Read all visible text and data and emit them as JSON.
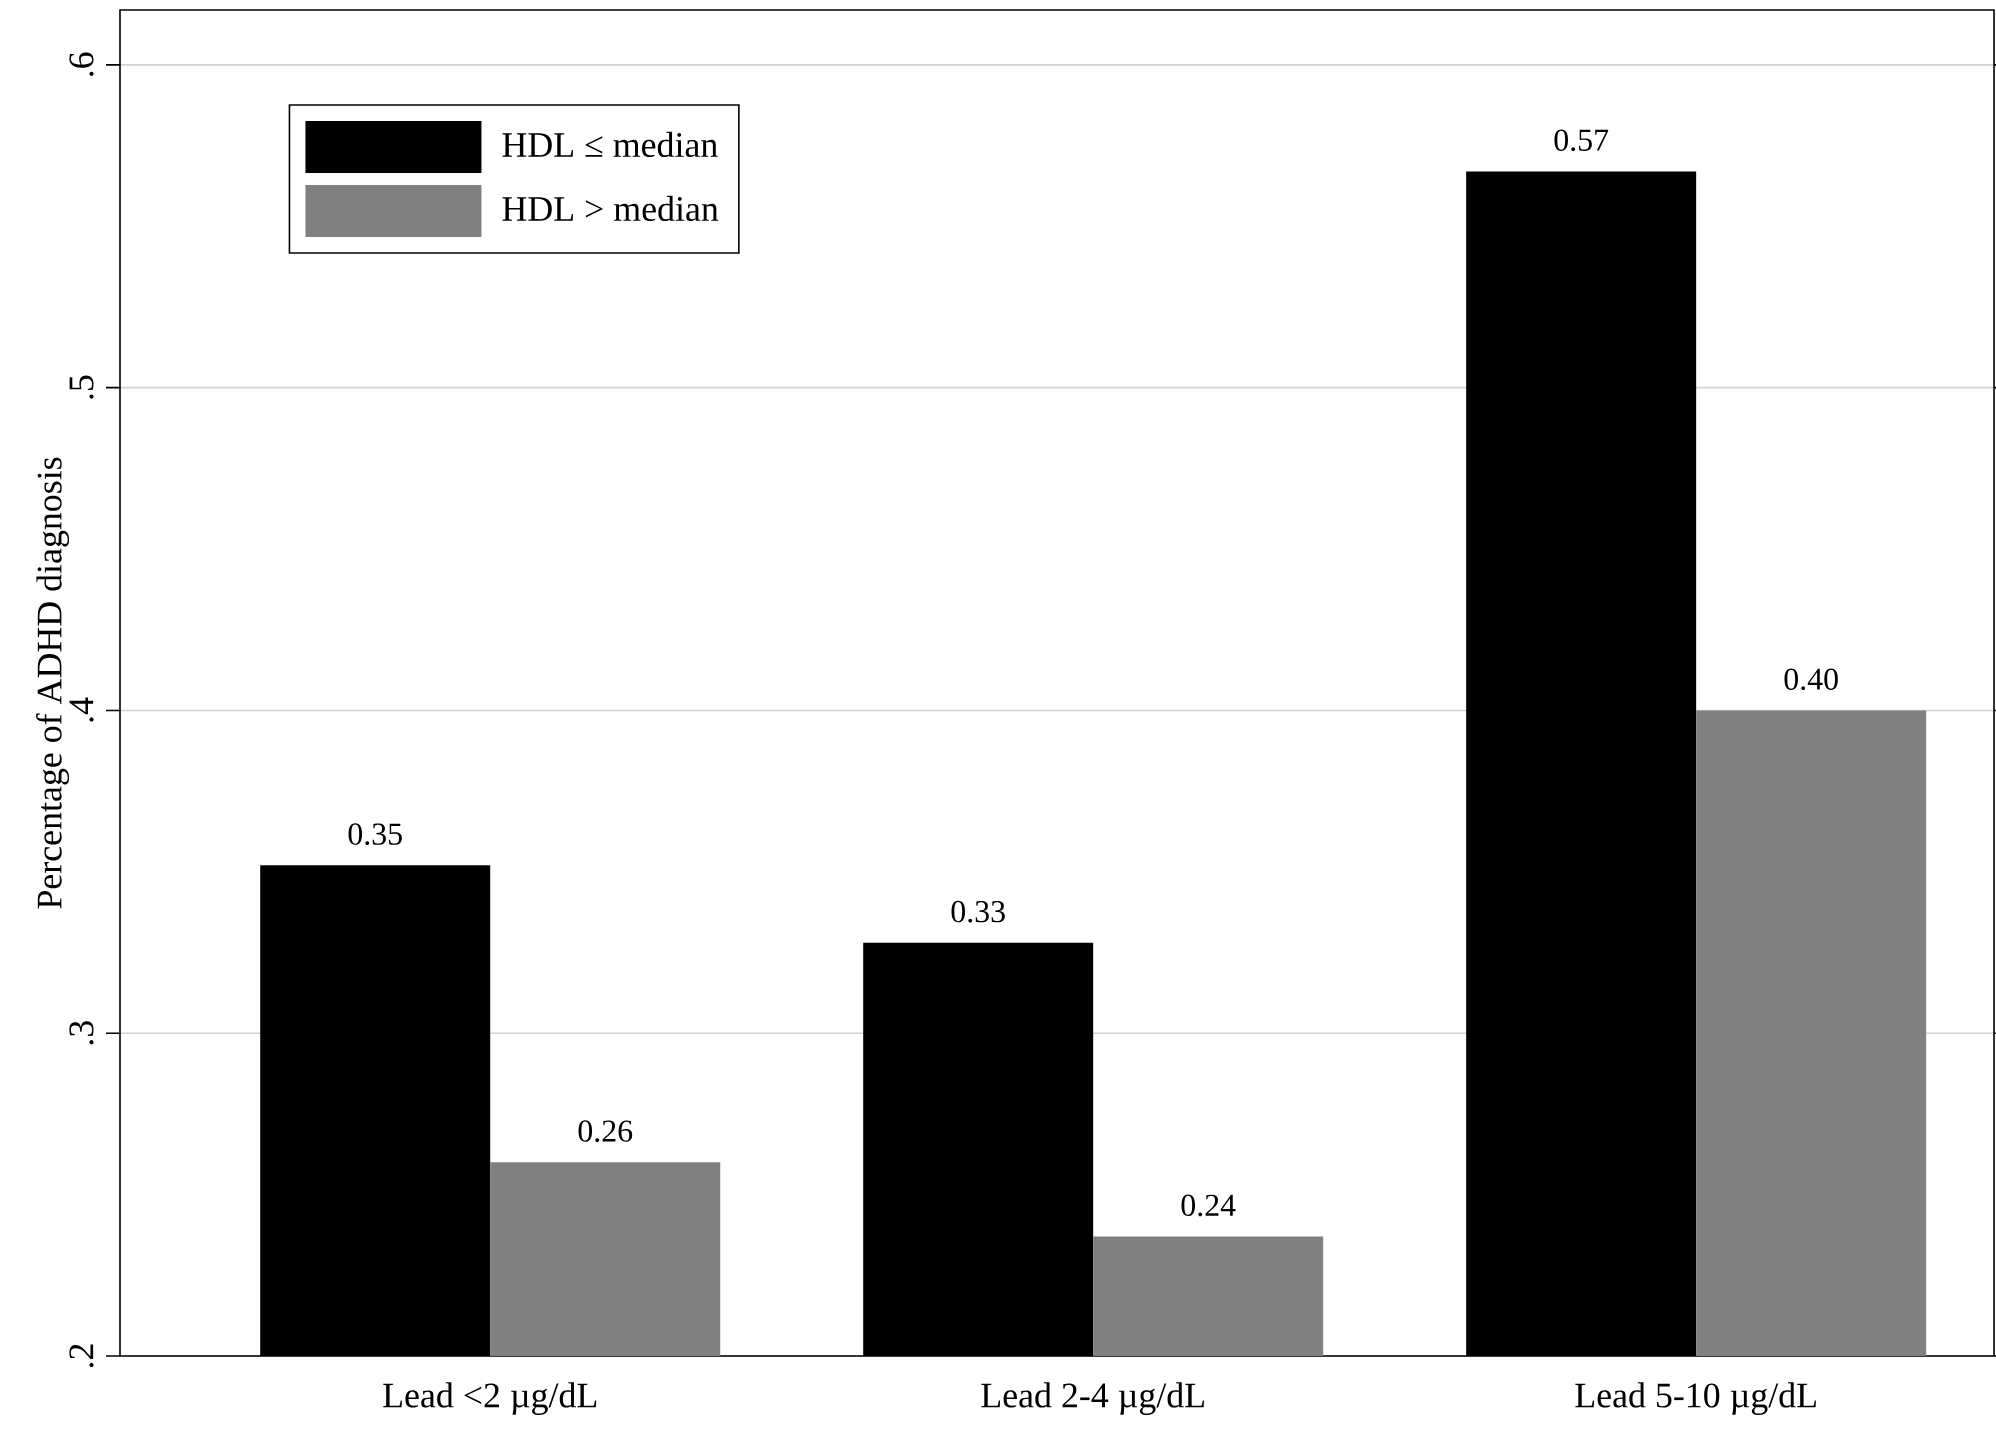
{
  "chart_data": {
    "type": "bar",
    "ylabel": "Percentage of ADHD diagnosis",
    "categories": [
      "Lead <2 µg/dL",
      "Lead 2-4 µg/dL",
      "Lead 5-10 µg/dL"
    ],
    "series": [
      {
        "name": "HDL ≤ median",
        "color": "#000000",
        "values": [
          0.352,
          0.328,
          0.567
        ],
        "value_labels": [
          "0.35",
          "0.33",
          "0.57"
        ]
      },
      {
        "name": "HDL > median",
        "color": "#808080",
        "values": [
          0.26,
          0.237,
          0.4
        ],
        "value_labels": [
          "0.26",
          "0.24",
          "0.40"
        ]
      }
    ],
    "ylim": [
      0.2,
      0.617
    ],
    "yticks": [
      {
        "value": 0.2,
        "label": ".2"
      },
      {
        "value": 0.3,
        "label": ".3"
      },
      {
        "value": 0.4,
        "label": ".4"
      },
      {
        "value": 0.5,
        "label": ".5"
      },
      {
        "value": 0.6,
        "label": ".6"
      }
    ],
    "grid": "y",
    "legend": "top left"
  }
}
